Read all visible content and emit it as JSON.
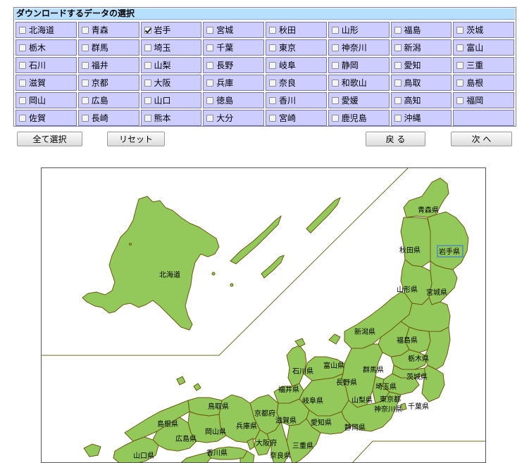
{
  "panel": {
    "title": "ダウンロードするデータの選択",
    "prefectures": [
      {
        "name": "北海道",
        "checked": false
      },
      {
        "name": "青森",
        "checked": false
      },
      {
        "name": "岩手",
        "checked": true
      },
      {
        "name": "宮城",
        "checked": false
      },
      {
        "name": "秋田",
        "checked": false
      },
      {
        "name": "山形",
        "checked": false
      },
      {
        "name": "福島",
        "checked": false
      },
      {
        "name": "茨城",
        "checked": false
      },
      {
        "name": "栃木",
        "checked": false
      },
      {
        "name": "群馬",
        "checked": false
      },
      {
        "name": "埼玉",
        "checked": false
      },
      {
        "name": "千葉",
        "checked": false
      },
      {
        "name": "東京",
        "checked": false
      },
      {
        "name": "神奈川",
        "checked": false
      },
      {
        "name": "新潟",
        "checked": false
      },
      {
        "name": "富山",
        "checked": false
      },
      {
        "name": "石川",
        "checked": false
      },
      {
        "name": "福井",
        "checked": false
      },
      {
        "name": "山梨",
        "checked": false
      },
      {
        "name": "長野",
        "checked": false
      },
      {
        "name": "岐阜",
        "checked": false
      },
      {
        "name": "静岡",
        "checked": false
      },
      {
        "name": "愛知",
        "checked": false
      },
      {
        "name": "三重",
        "checked": false
      },
      {
        "name": "滋賀",
        "checked": false
      },
      {
        "name": "京都",
        "checked": false
      },
      {
        "name": "大阪",
        "checked": false
      },
      {
        "name": "兵庫",
        "checked": false
      },
      {
        "name": "奈良",
        "checked": false
      },
      {
        "name": "和歌山",
        "checked": false
      },
      {
        "name": "鳥取",
        "checked": false
      },
      {
        "name": "島根",
        "checked": false
      },
      {
        "name": "岡山",
        "checked": false
      },
      {
        "name": "広島",
        "checked": false
      },
      {
        "name": "山口",
        "checked": false
      },
      {
        "name": "徳島",
        "checked": false
      },
      {
        "name": "香川",
        "checked": false
      },
      {
        "name": "愛媛",
        "checked": false
      },
      {
        "name": "高知",
        "checked": false
      },
      {
        "name": "福岡",
        "checked": false
      },
      {
        "name": "佐賀",
        "checked": false
      },
      {
        "name": "長崎",
        "checked": false
      },
      {
        "name": "熊本",
        "checked": false
      },
      {
        "name": "大分",
        "checked": false
      },
      {
        "name": "宮崎",
        "checked": false
      },
      {
        "name": "鹿児島",
        "checked": false
      },
      {
        "name": "沖縄",
        "checked": false
      }
    ]
  },
  "buttons": {
    "select_all": "全て選択",
    "reset": "リセット",
    "back": "戻 る",
    "next": "次 へ"
  },
  "map": {
    "labels": {
      "hokkaido": "北海道",
      "aomori": "青森県",
      "akita": "秋田県",
      "iwate": "岩手県",
      "yamagata": "山形県",
      "miyagi": "宮城県",
      "niigata": "新潟県",
      "fukushima": "福島県",
      "tochigi": "栃木県",
      "ishikawa": "石川県",
      "toyama": "富山県",
      "gunma": "群馬県",
      "ibaraki": "茨城県",
      "fukui": "福井県",
      "nagano": "長野県",
      "saitama": "埼玉県",
      "tokyo": "東京都",
      "gifu": "岐阜県",
      "yamanashi": "山梨県",
      "kanagawa": "神奈川県",
      "chiba": "千葉県",
      "tottori": "鳥取県",
      "kyoto": "京都府",
      "shiga": "滋賀県",
      "shimane": "島根県",
      "aichi": "愛知県",
      "okayama": "岡山県",
      "hyogo": "兵庫県",
      "shizuoka": "静岡県",
      "hiroshima": "広島県",
      "osaka": "大阪府",
      "mie": "三重県",
      "yamaguchi": "山口県",
      "kagawa": "香川県",
      "nara": "奈良県"
    },
    "colors": {
      "land": "#93c85b",
      "border": "#6b5a10",
      "selected_outline": "#3a7fd0"
    }
  }
}
